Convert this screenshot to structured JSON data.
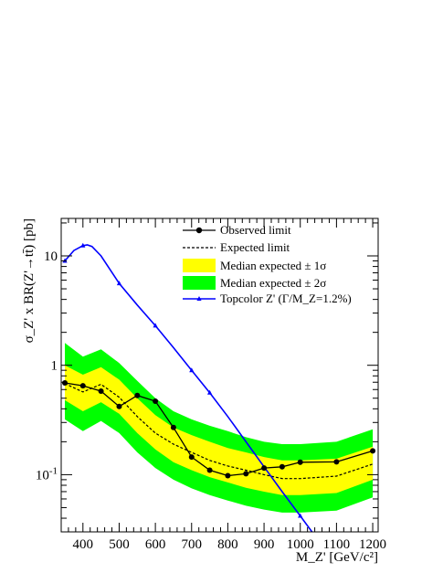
{
  "chart_data": {
    "type": "line",
    "xlabel": "M_Z' [GeV/c²]",
    "ylabel": "σ_Z' x BR(Z'→tt̄) [pb]",
    "xlim": [
      340,
      1215
    ],
    "ylim": [
      0.03,
      22
    ],
    "yscale": "log",
    "grid": false,
    "legend_position": "top-right",
    "x_ticks": [
      400,
      500,
      600,
      700,
      800,
      900,
      1000,
      1100,
      1200
    ],
    "y_ticks": [
      {
        "value": 10,
        "label": "10"
      },
      {
        "value": 1,
        "label": "1"
      },
      {
        "value": 0.1,
        "label": "10-1"
      }
    ],
    "legend": [
      {
        "key": "observed",
        "label": "Observed limit"
      },
      {
        "key": "expected",
        "label": "Expected limit"
      },
      {
        "key": "band1",
        "label": "Median expected ± 1σ"
      },
      {
        "key": "band2",
        "label": "Median expected ± 2σ"
      },
      {
        "key": "topcolor",
        "label": "Topcolor Z' (Γ/M_Z=1.2%)"
      }
    ],
    "colors": {
      "observed": "#000000",
      "expected": "#000000",
      "band1": "#ffff00",
      "band2": "#00ff00",
      "topcolor": "#0000ff"
    },
    "x": [
      350,
      400,
      450,
      500,
      550,
      600,
      650,
      700,
      750,
      800,
      850,
      900,
      950,
      1000,
      1100,
      1200
    ],
    "observed": [
      0.69,
      0.65,
      0.58,
      0.42,
      0.53,
      0.47,
      0.27,
      0.145,
      0.11,
      0.098,
      0.102,
      0.115,
      0.118,
      0.13,
      0.131,
      0.165
    ],
    "expected": [
      0.68,
      0.57,
      0.67,
      0.51,
      0.34,
      0.24,
      0.19,
      0.16,
      0.135,
      0.12,
      0.11,
      0.1,
      0.092,
      0.092,
      0.097,
      0.125
    ],
    "band1_low": [
      0.48,
      0.38,
      0.46,
      0.36,
      0.24,
      0.17,
      0.13,
      0.11,
      0.095,
      0.085,
      0.076,
      0.07,
      0.065,
      0.065,
      0.068,
      0.09
    ],
    "band1_high": [
      1.0,
      0.82,
      0.96,
      0.74,
      0.5,
      0.35,
      0.27,
      0.23,
      0.2,
      0.175,
      0.16,
      0.145,
      0.135,
      0.135,
      0.14,
      0.18
    ],
    "band2_low": [
      0.32,
      0.25,
      0.31,
      0.24,
      0.16,
      0.115,
      0.09,
      0.075,
      0.065,
      0.058,
      0.052,
      0.048,
      0.045,
      0.045,
      0.047,
      0.062
    ],
    "band2_high": [
      1.6,
      1.2,
      1.4,
      1.05,
      0.72,
      0.5,
      0.38,
      0.32,
      0.28,
      0.25,
      0.22,
      0.2,
      0.19,
      0.19,
      0.2,
      0.26
    ],
    "topcolor": {
      "x": [
        350,
        375,
        400,
        412,
        425,
        450,
        500,
        550,
        600,
        650,
        700,
        750,
        800,
        850,
        900,
        950,
        1000,
        1050
      ],
      "y": [
        9.0,
        11.2,
        12.4,
        12.6,
        12.2,
        10.0,
        5.6,
        3.55,
        2.3,
        1.45,
        0.9,
        0.56,
        0.34,
        0.2,
        0.118,
        0.07,
        0.042,
        0.025
      ],
      "marker_x": [
        350,
        400,
        500,
        600,
        700,
        750,
        1000
      ]
    }
  }
}
